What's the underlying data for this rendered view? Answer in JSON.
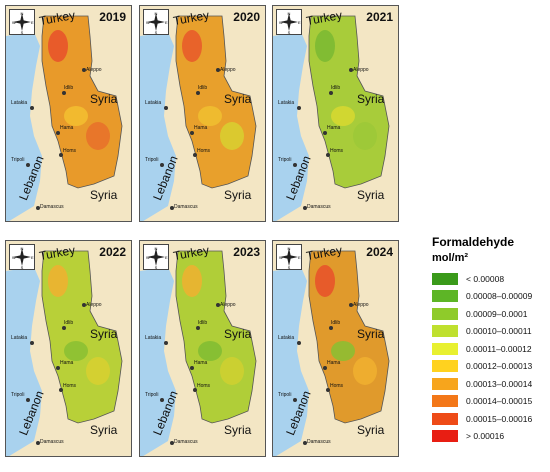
{
  "panels": [
    {
      "year": "2019",
      "fill": "#e89a2a",
      "spots": [
        "#e8502a",
        "#f3c030",
        "#e8702a"
      ]
    },
    {
      "year": "2020",
      "fill": "#e8a02c",
      "spots": [
        "#e8582a",
        "#f0c030",
        "#d8d030"
      ]
    },
    {
      "year": "2021",
      "fill": "#a8cc3a",
      "spots": [
        "#7ab833",
        "#d8d830",
        "#9cc838"
      ]
    },
    {
      "year": "2022",
      "fill": "#b8d038",
      "spots": [
        "#f0b030",
        "#88c033",
        "#d8d030"
      ]
    },
    {
      "year": "2023",
      "fill": "#b0ce38",
      "spots": [
        "#f0b030",
        "#80bc33",
        "#d0d030"
      ]
    },
    {
      "year": "2024",
      "fill": "#e09a2c",
      "spots": [
        "#e8502a",
        "#88c033",
        "#f0b030"
      ]
    }
  ],
  "labels": {
    "turkey": "Turkey",
    "syria": "Syria",
    "lebanon": "Lebanon",
    "aleppo": "Aleppo",
    "idlib": "Idlib",
    "latakia": "Latakia",
    "hama": "Hama",
    "homs": "Homs",
    "tripoli": "Tripoli",
    "damascus": "Damascus"
  },
  "compass": {
    "n": "N",
    "s": "S",
    "e": "E",
    "w": "W"
  },
  "legend": {
    "title": "Formaldehyde",
    "unit": "mol/m²",
    "items": [
      {
        "label": "< 0.00008",
        "color": "#3a9a1a"
      },
      {
        "label": "0.00008–0.00009",
        "color": "#5db526"
      },
      {
        "label": "0.00009–0.0001",
        "color": "#8fcb2a"
      },
      {
        "label": "0.00010–0.00011",
        "color": "#bfe02e"
      },
      {
        "label": "0.00011–0.00012",
        "color": "#e8f030"
      },
      {
        "label": "0.00012–0.00013",
        "color": "#ffd21f"
      },
      {
        "label": "0.00013–0.00014",
        "color": "#f7a51c"
      },
      {
        "label": "0.00014–0.00015",
        "color": "#f37718"
      },
      {
        "label": "0.00015–0.00016",
        "color": "#ee4b17"
      },
      {
        "label": "> 0.00016",
        "color": "#e81e13"
      }
    ]
  }
}
